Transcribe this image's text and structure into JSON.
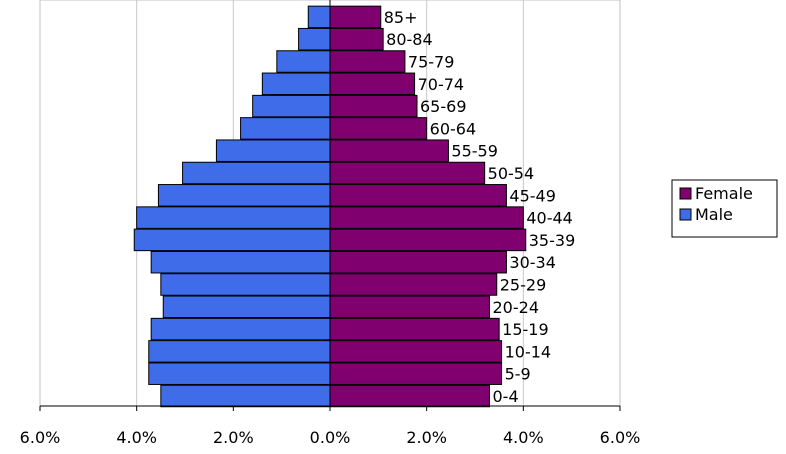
{
  "chart_data": {
    "type": "bar",
    "orientation": "horizontal",
    "layout": "population-pyramid",
    "categories": [
      "0-4",
      "5-9",
      "10-14",
      "15-19",
      "20-24",
      "25-29",
      "30-34",
      "35-39",
      "40-44",
      "45-49",
      "50-54",
      "55-59",
      "60-64",
      "65-69",
      "70-74",
      "75-79",
      "80-84",
      "85+"
    ],
    "series": [
      {
        "name": "Male",
        "color": "#3f6dea",
        "values": [
          3.5,
          3.75,
          3.75,
          3.7,
          3.45,
          3.5,
          3.7,
          4.05,
          4.0,
          3.55,
          3.05,
          2.35,
          1.85,
          1.6,
          1.4,
          1.1,
          0.65,
          0.45
        ]
      },
      {
        "name": "Female",
        "color": "#80006f",
        "values": [
          3.3,
          3.55,
          3.55,
          3.5,
          3.3,
          3.45,
          3.65,
          4.05,
          4.0,
          3.65,
          3.2,
          2.45,
          2.0,
          1.8,
          1.75,
          1.55,
          1.1,
          1.05
        ]
      }
    ],
    "xlim": [
      -6,
      6
    ],
    "x_ticks": [
      "6.0%",
      "4.0%",
      "2.0%",
      "0.0%",
      "2.0%",
      "4.0%",
      "6.0%"
    ],
    "x_tick_values": [
      -6,
      -4,
      -2,
      0,
      2,
      4,
      6
    ],
    "grid": "vertical",
    "legend_position": "right",
    "legend": [
      "Female",
      "Male"
    ],
    "title": "",
    "xlabel": "",
    "ylabel": ""
  }
}
